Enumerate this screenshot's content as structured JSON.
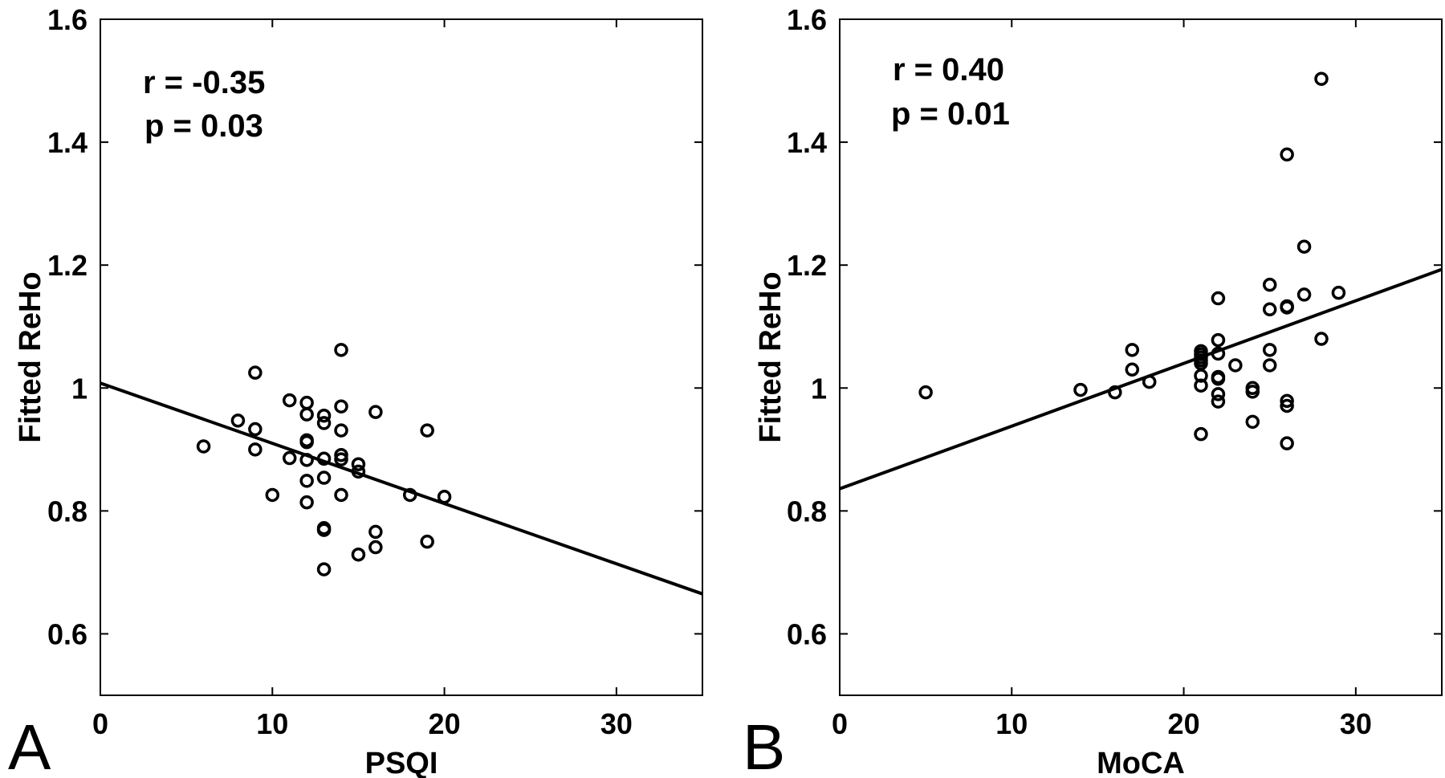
{
  "chart_data": [
    {
      "type": "scatter",
      "panel_label": "A",
      "xlabel": "PSQI",
      "ylabel": "Fitted ReHo",
      "xlim": [
        0,
        35
      ],
      "ylim": [
        0.5,
        1.6
      ],
      "xticks": [
        0,
        10,
        20,
        30
      ],
      "yticks": [
        0.6,
        0.8,
        1,
        1.2,
        1.4,
        1.6
      ],
      "ytick_labels": [
        "0.6",
        "0.8",
        "1",
        "1.2",
        "1.4",
        "1.6"
      ],
      "annotation_r": "r = -0.35",
      "annotation_p": "p = 0.03",
      "fit_line": {
        "intercept": 1.008,
        "slope": -0.0098
      },
      "points": [
        [
          6,
          0.905
        ],
        [
          8,
          0.947
        ],
        [
          9,
          1.025
        ],
        [
          9,
          0.933
        ],
        [
          9,
          0.9
        ],
        [
          10,
          0.826
        ],
        [
          11,
          0.98
        ],
        [
          11,
          0.886
        ],
        [
          12,
          0.976
        ],
        [
          12,
          0.957
        ],
        [
          12,
          0.915
        ],
        [
          12,
          0.912
        ],
        [
          12,
          0.883
        ],
        [
          12,
          0.849
        ],
        [
          12,
          0.814
        ],
        [
          13,
          0.955
        ],
        [
          13,
          0.943
        ],
        [
          13,
          0.885
        ],
        [
          13,
          0.854
        ],
        [
          13,
          0.772
        ],
        [
          13,
          0.769
        ],
        [
          13,
          0.705
        ],
        [
          14,
          1.062
        ],
        [
          14,
          0.97
        ],
        [
          14,
          0.931
        ],
        [
          14,
          0.891
        ],
        [
          14,
          0.884
        ],
        [
          14,
          0.826
        ],
        [
          15,
          0.876
        ],
        [
          15,
          0.864
        ],
        [
          15,
          0.729
        ],
        [
          16,
          0.961
        ],
        [
          16,
          0.766
        ],
        [
          16,
          0.741
        ],
        [
          18,
          0.826
        ],
        [
          19,
          0.931
        ],
        [
          19,
          0.75
        ],
        [
          20,
          0.823
        ]
      ]
    },
    {
      "type": "scatter",
      "panel_label": "B",
      "xlabel": "MoCA",
      "ylabel": "Fitted ReHo",
      "xlim": [
        0,
        35
      ],
      "ylim": [
        0.5,
        1.6
      ],
      "xticks": [
        0,
        10,
        20,
        30
      ],
      "yticks": [
        0.6,
        0.8,
        1,
        1.2,
        1.4,
        1.6
      ],
      "ytick_labels": [
        "0.6",
        "0.8",
        "1",
        "1.2",
        "1.4",
        "1.6"
      ],
      "annotation_r": "r = 0.40",
      "annotation_p": "p = 0.01",
      "fit_line": {
        "intercept": 0.836,
        "slope": 0.0102
      },
      "points": [
        [
          5,
          0.993
        ],
        [
          14,
          0.997
        ],
        [
          16,
          0.993
        ],
        [
          17,
          1.062
        ],
        [
          17,
          1.03
        ],
        [
          18,
          1.01
        ],
        [
          21,
          1.06
        ],
        [
          21,
          1.055
        ],
        [
          21,
          1.05
        ],
        [
          21,
          1.045
        ],
        [
          21,
          1.04
        ],
        [
          21,
          1.02
        ],
        [
          21,
          1.004
        ],
        [
          21,
          0.925
        ],
        [
          22,
          1.146
        ],
        [
          22,
          1.078
        ],
        [
          22,
          1.056
        ],
        [
          22,
          1.018
        ],
        [
          22,
          1.015
        ],
        [
          22,
          0.99
        ],
        [
          22,
          0.978
        ],
        [
          23,
          1.037
        ],
        [
          24,
          1.0
        ],
        [
          24,
          0.994
        ],
        [
          24,
          0.945
        ],
        [
          25,
          1.168
        ],
        [
          25,
          1.128
        ],
        [
          25,
          1.062
        ],
        [
          25,
          1.037
        ],
        [
          26,
          1.38
        ],
        [
          26,
          1.133
        ],
        [
          26,
          1.131
        ],
        [
          26,
          0.979
        ],
        [
          26,
          0.971
        ],
        [
          26,
          0.91
        ],
        [
          27,
          1.23
        ],
        [
          27,
          1.152
        ],
        [
          28,
          1.503
        ],
        [
          28,
          1.08
        ],
        [
          29,
          1.155
        ]
      ]
    }
  ]
}
